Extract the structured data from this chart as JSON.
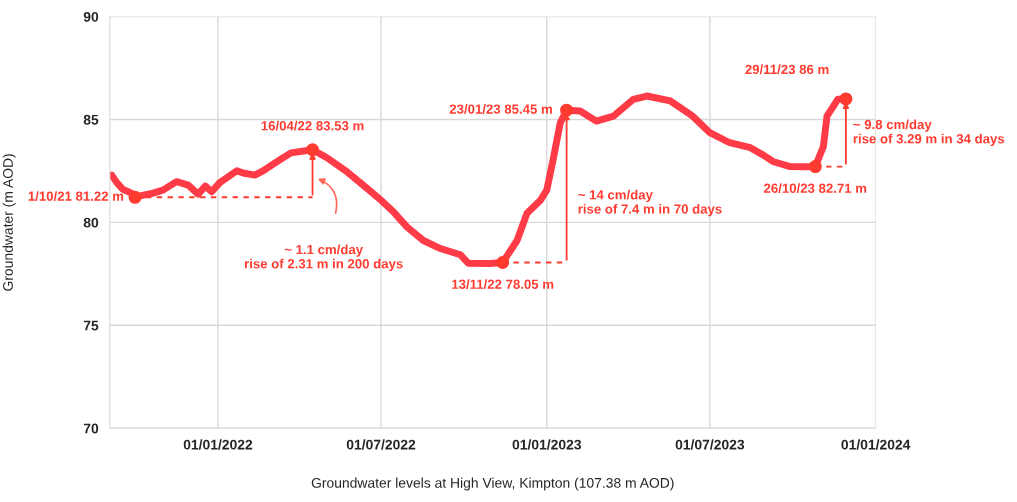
{
  "chart_data": {
    "type": "line",
    "xlabel": "Groundwater levels at High View, Kimpton (107.38 m AOD)",
    "ylabel": "Groundwater (m AOD)",
    "xlim": [
      "2021-09-03",
      "2024-01-01"
    ],
    "xticks": [
      {
        "value": "2022-01-01",
        "label": "01/01/2022"
      },
      {
        "value": "2022-07-01",
        "label": "01/07/2022"
      },
      {
        "value": "2023-01-01",
        "label": "01/01/2023"
      },
      {
        "value": "2023-07-01",
        "label": "01/07/2023"
      },
      {
        "value": "2024-01-01",
        "label": "01/01/2024"
      }
    ],
    "ylim": [
      70,
      90
    ],
    "yticks": [
      70,
      75,
      80,
      85,
      90
    ],
    "grid": true,
    "series": [
      {
        "color": "#ff3b47",
        "marker": "none",
        "line_style": "solid",
        "x": [
          "2021-09-05",
          "2021-09-10",
          "2021-09-17",
          "2021-09-27",
          "2021-10-01",
          "2021-10-08",
          "2021-10-21",
          "2021-11-01",
          "2021-11-16",
          "2021-11-29",
          "2021-12-10",
          "2021-12-18",
          "2021-12-25",
          "2022-01-03",
          "2022-01-22",
          "2022-01-29",
          "2022-02-11",
          "2022-02-20",
          "2022-03-08",
          "2022-03-23",
          "2022-04-16",
          "2022-05-02",
          "2022-05-24",
          "2022-06-15",
          "2022-07-01",
          "2022-07-15",
          "2022-07-30",
          "2022-08-17",
          "2022-09-05",
          "2022-09-27",
          "2022-10-06",
          "2022-10-30",
          "2022-11-13",
          "2022-11-29",
          "2022-12-10",
          "2022-12-25",
          "2023-01-01",
          "2023-01-08",
          "2023-01-16",
          "2023-01-23",
          "2023-02-07",
          "2023-02-25",
          "2023-03-16",
          "2023-04-07",
          "2023-04-22",
          "2023-05-18",
          "2023-06-12",
          "2023-07-01",
          "2023-07-23",
          "2023-08-15",
          "2023-08-29",
          "2023-09-09",
          "2023-09-28",
          "2023-10-13",
          "2023-10-26",
          "2023-11-04",
          "2023-11-08",
          "2023-11-20",
          "2023-11-29"
        ],
        "values": [
          82.3,
          81.98,
          81.62,
          81.42,
          81.22,
          81.3,
          81.42,
          81.57,
          81.98,
          81.81,
          81.37,
          81.76,
          81.49,
          81.93,
          82.51,
          82.4,
          82.3,
          82.5,
          82.96,
          83.38,
          83.53,
          83.14,
          82.47,
          81.67,
          81.08,
          80.5,
          79.77,
          79.12,
          78.73,
          78.43,
          78.01,
          78.0,
          78.05,
          79.12,
          80.44,
          81.08,
          81.57,
          83.04,
          84.85,
          85.45,
          85.41,
          84.92,
          85.16,
          85.98,
          86.14,
          85.9,
          85.16,
          84.36,
          83.87,
          83.63,
          83.28,
          82.96,
          82.71,
          82.7,
          82.71,
          83.69,
          85.16,
          85.98,
          86.0
        ]
      },
      {
        "type": "scatter",
        "color": "#ff3b30",
        "marker": "circle",
        "x": [
          "2021-10-01",
          "2022-04-16",
          "2022-11-13",
          "2023-01-23",
          "2023-10-26",
          "2023-11-29"
        ],
        "values": [
          81.22,
          83.53,
          78.05,
          85.45,
          82.71,
          86.0
        ]
      }
    ],
    "annotations": [
      {
        "text": "1/10/21 81.22 m",
        "x": "2021-10-01",
        "y": 81.22
      },
      {
        "text": "16/04/22 83.53 m",
        "x": "2022-04-16",
        "y": 83.53
      },
      {
        "text": "13/11/22 78.05 m",
        "x": "2022-11-13",
        "y": 78.05
      },
      {
        "text": "23/01/23 85.45 m",
        "x": "2023-01-23",
        "y": 85.45
      },
      {
        "text": "26/10/23 82.71 m",
        "x": "2023-10-26",
        "y": 82.71
      },
      {
        "text": "29/11/23 86 m",
        "x": "2023-11-29",
        "y": 86.0
      },
      "~ 1.1 cm/day\nrise of 2.31 m in 200 days",
      "~ 14 cm/day\nrise of 7.4 m in 70 days",
      "~ 9.8 cm/day\nrise of 3.29 m in 34 days"
    ]
  }
}
